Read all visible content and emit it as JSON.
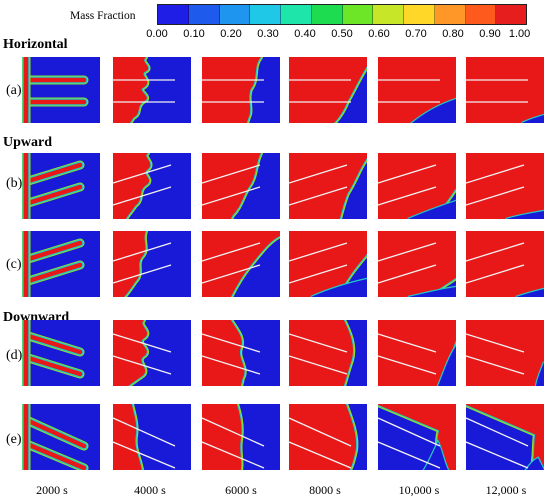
{
  "colorbar": {
    "title": "Mass Fraction",
    "ticks": [
      "0.00",
      "0.10",
      "0.20",
      "0.30",
      "0.40",
      "0.50",
      "0.60",
      "0.70",
      "0.80",
      "0.90",
      "1.00"
    ],
    "colors": [
      "#1e1ee6",
      "#1e5aeb",
      "#1e96f0",
      "#1ec8e6",
      "#1ee6aa",
      "#1edc50",
      "#6ee628",
      "#c8e628",
      "#ffd728",
      "#ff9628",
      "#ff5a1e",
      "#e61e1e"
    ]
  },
  "groups": [
    {
      "title": "Horizontal",
      "rows": [
        {
          "label": "(a)"
        }
      ]
    },
    {
      "title": "Upward",
      "rows": [
        {
          "label": "(b)"
        },
        {
          "label": "(c)"
        }
      ]
    },
    {
      "title": "Downward",
      "rows": [
        {
          "label": "(d)"
        },
        {
          "label": "(e)"
        }
      ]
    }
  ],
  "times": [
    "2000 s",
    "4000 s",
    "6000 s",
    "8000 s",
    "10,000 s",
    "12,000 s"
  ],
  "colors": {
    "low": "#1919d8",
    "high": "#e81818",
    "edge": "#22c8c8",
    "edge2": "#88e030"
  }
}
